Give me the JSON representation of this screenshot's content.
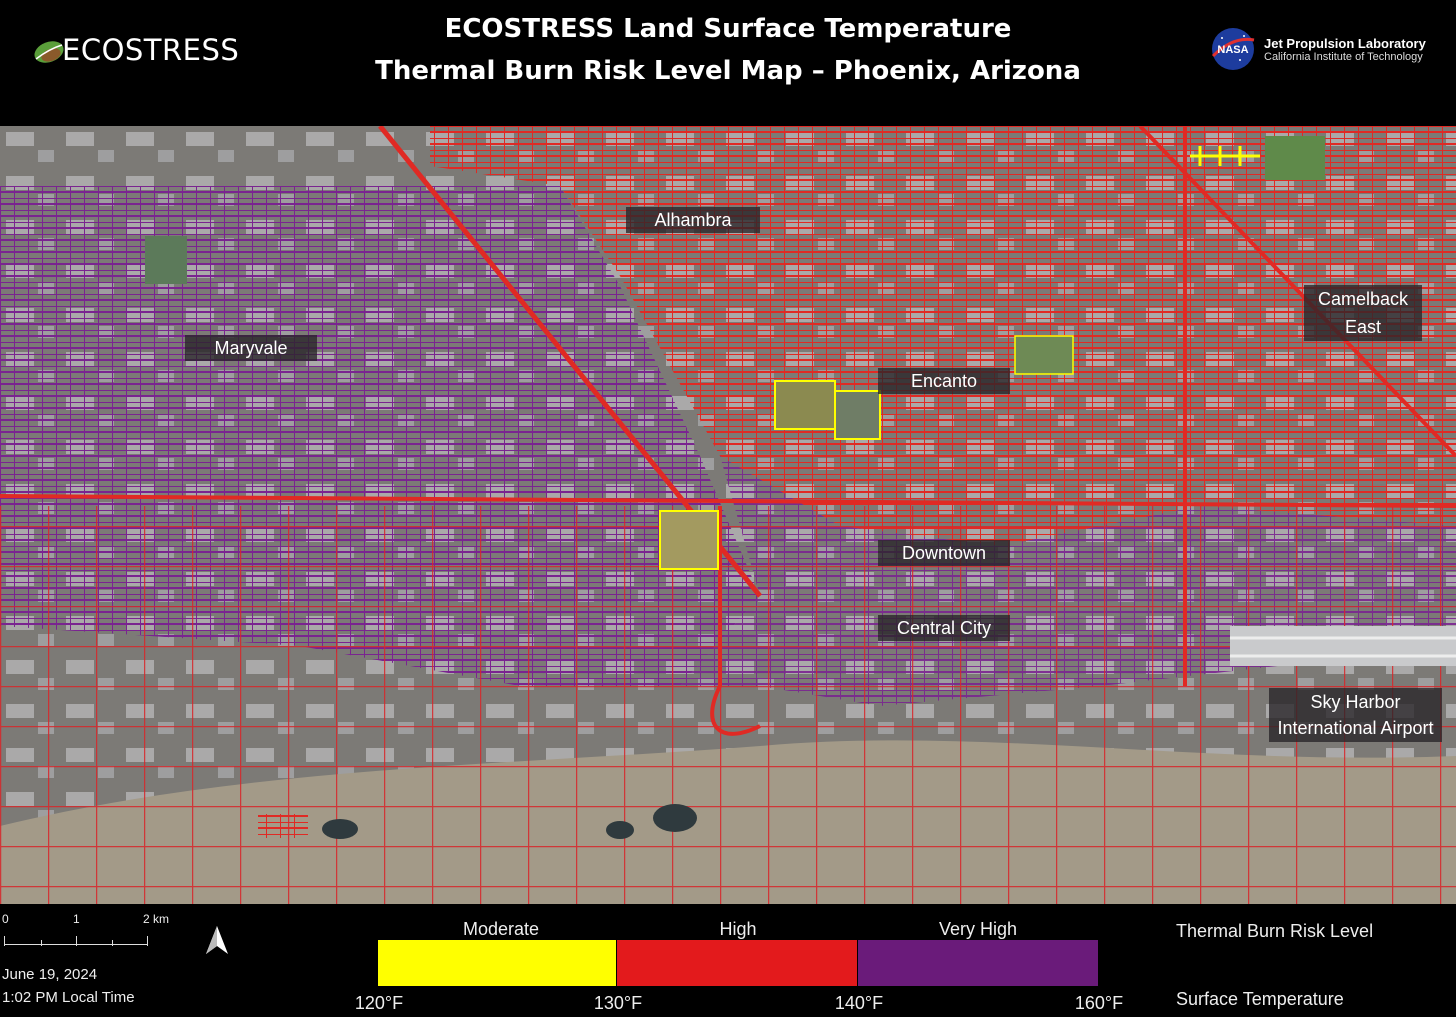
{
  "header": {
    "title_line1": "ECOSTRESS Land Surface Temperature",
    "title_line2": "Thermal Burn Risk Level Map – Phoenix, Arizona",
    "logo_left_text": "ECOSTRESS",
    "logo_right_line1": "Jet Propulsion Laboratory",
    "logo_right_line2": "California Institute of Technology",
    "nasa_text": "NASA"
  },
  "map": {
    "places": [
      {
        "name": "Alhambra"
      },
      {
        "name": "Maryvale"
      },
      {
        "name": "Encanto"
      },
      {
        "name": "Camelback",
        "name2": "East"
      },
      {
        "name": "Downtown"
      },
      {
        "name": "Central City"
      },
      {
        "name": "Sky Harbor",
        "name2": "International Airport"
      }
    ]
  },
  "footer": {
    "scale": {
      "labels": [
        "0",
        "1",
        "2 km"
      ]
    },
    "date": "June 19, 2024",
    "time": "1:02 PM Local Time",
    "legend": {
      "categories": [
        {
          "label": "Moderate",
          "color": "#ffff00"
        },
        {
          "label": "High",
          "color": "#e31a1c"
        },
        {
          "label": "Very High",
          "color": "#6a1b7a"
        }
      ],
      "ticks": [
        "120°F",
        "130°F",
        "140°F",
        "160°F"
      ],
      "title_top": "Thermal Burn Risk Level",
      "title_bottom": "Surface Temperature"
    }
  }
}
